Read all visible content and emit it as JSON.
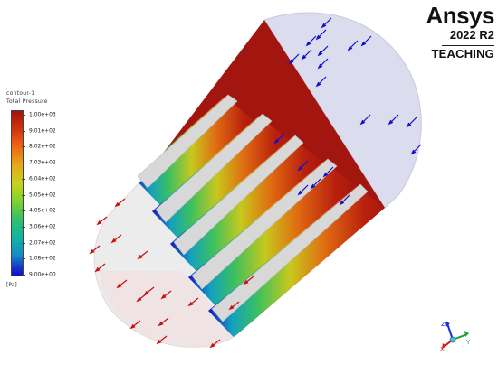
{
  "legend": {
    "title_line1": "contour-1",
    "title_line2": "Total Pressure",
    "unit": "[Pa]",
    "labels": [
      "1.00e+03",
      "9.01e+02",
      "8.02e+02",
      "7.03e+02",
      "6.04e+02",
      "5.05e+02",
      "4.05e+02",
      "3.06e+02",
      "2.07e+02",
      "1.08e+02",
      "9.00e+00"
    ],
    "colors": {
      "high": "#a5120d",
      "mid": "#c8d21c",
      "low": "#0f10c8"
    }
  },
  "brand": {
    "name": "Ansys",
    "version": "2022 R2",
    "edition": "TEACHING"
  },
  "scene": {
    "inlet_arrow_color": "#1010c8",
    "outlet_arrow_color": "#c81010",
    "icons": [
      "inlet-arrow-icon",
      "outlet-arrow-icon",
      "axis-triad-icon"
    ]
  }
}
